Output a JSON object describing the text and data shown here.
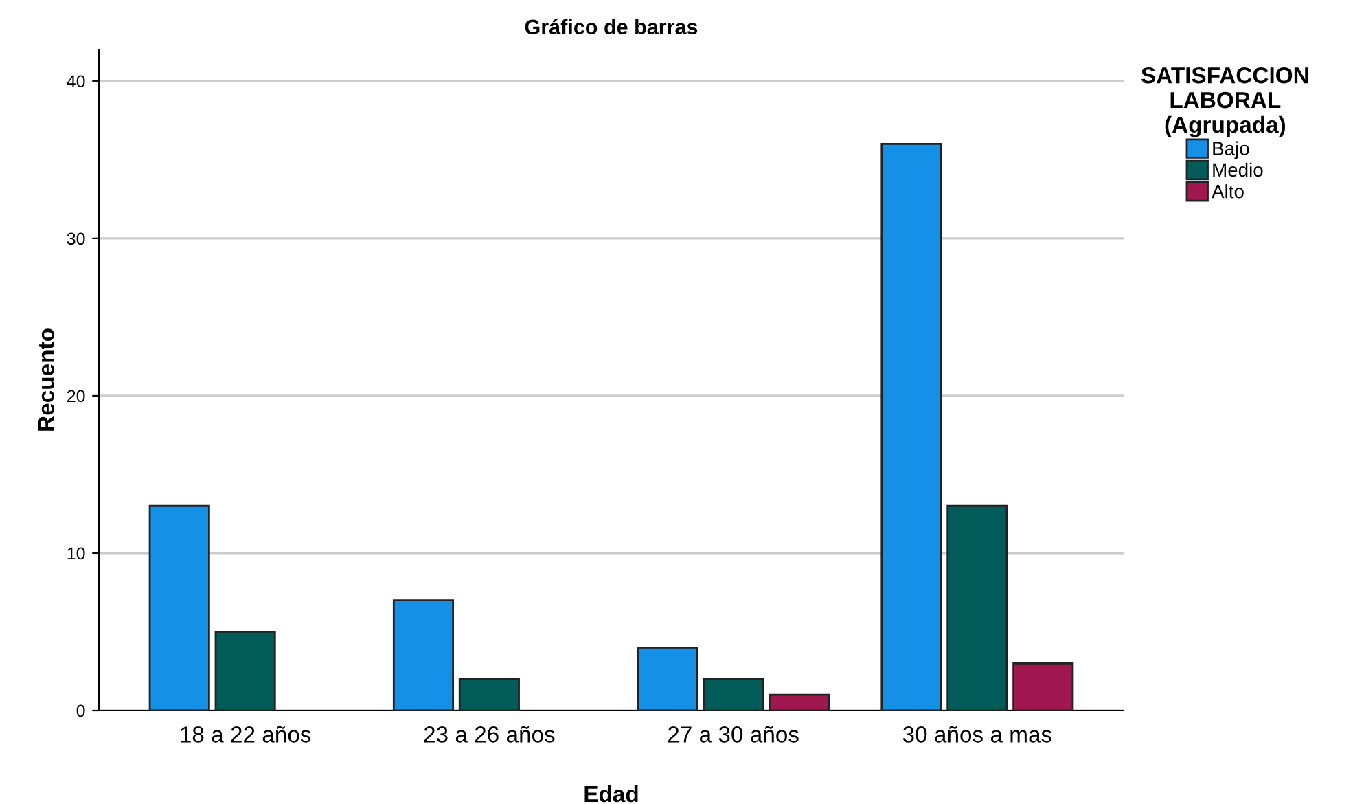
{
  "chart_data": {
    "type": "bar",
    "title": "Gráfico de barras",
    "xlabel": "Edad",
    "ylabel": "Recuento",
    "legend_title": "SATISFACCION\nLABORAL\n(Agrupada)",
    "categories": [
      "18 a 22 años",
      "23 a 26 años",
      "27 a 30 años",
      "30 años a mas"
    ],
    "series": [
      {
        "name": "Bajo",
        "color": "#1490e6",
        "values": [
          13,
          7,
          4,
          36
        ]
      },
      {
        "name": "Medio",
        "color": "#025d5a",
        "values": [
          5,
          2,
          2,
          13
        ]
      },
      {
        "name": "Alto",
        "color": "#a0184f",
        "values": [
          null,
          null,
          1,
          3
        ]
      }
    ],
    "ylim": [
      0,
      42
    ],
    "yticks": [
      0,
      10,
      20,
      30,
      40
    ],
    "grid": "y",
    "legend": "top right"
  }
}
